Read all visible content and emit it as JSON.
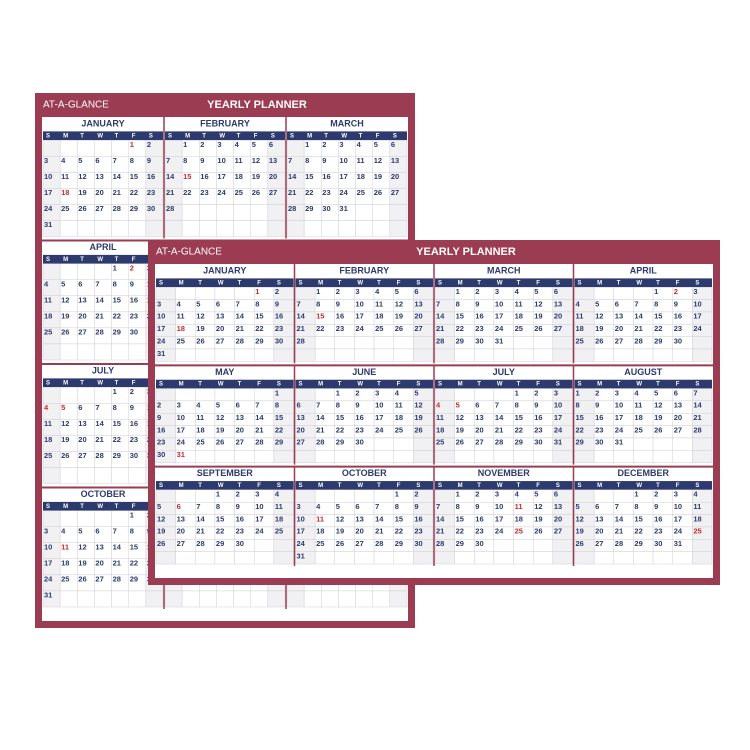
{
  "planners": [
    {
      "brand": "AT-A-GLANCE",
      "title": "YEARLY PLANNER"
    },
    {
      "brand": "AT-A-GLANCE",
      "title": "YEARLY PLANNER"
    }
  ],
  "frame_color": "#9b3c52",
  "navy": "#2c3a6e",
  "holiday_color": "#c62a33",
  "weekdays": [
    "S",
    "M",
    "T",
    "W",
    "T",
    "F",
    "S"
  ],
  "months": [
    {
      "name": "JANUARY",
      "holidays": [
        1,
        18
      ],
      "weeks": [
        [
          null,
          null,
          null,
          null,
          null,
          1,
          2
        ],
        [
          3,
          4,
          5,
          6,
          7,
          8,
          9
        ],
        [
          10,
          11,
          12,
          13,
          14,
          15,
          16
        ],
        [
          17,
          18,
          19,
          20,
          21,
          22,
          23
        ],
        [
          24,
          25,
          26,
          27,
          28,
          29,
          30
        ],
        [
          31
        ]
      ]
    },
    {
      "name": "FEBRUARY",
      "holidays": [
        15
      ],
      "weeks": [
        [
          null,
          1,
          2,
          3,
          4,
          5,
          6
        ],
        [
          7,
          8,
          9,
          10,
          11,
          12,
          13
        ],
        [
          14,
          15,
          16,
          17,
          18,
          19,
          20
        ],
        [
          21,
          22,
          23,
          24,
          25,
          26,
          27
        ],
        [
          28
        ]
      ]
    },
    {
      "name": "MARCH",
      "holidays": [],
      "weeks": [
        [
          null,
          1,
          2,
          3,
          4,
          5,
          6
        ],
        [
          7,
          8,
          9,
          10,
          11,
          12,
          13
        ],
        [
          14,
          15,
          16,
          17,
          18,
          19,
          20
        ],
        [
          21,
          22,
          23,
          24,
          25,
          26,
          27
        ],
        [
          28,
          29,
          30,
          31
        ]
      ]
    },
    {
      "name": "APRIL",
      "holidays": [
        2
      ],
      "weeks": [
        [
          null,
          null,
          null,
          null,
          1,
          2,
          3
        ],
        [
          4,
          5,
          6,
          7,
          8,
          9,
          10
        ],
        [
          11,
          12,
          13,
          14,
          15,
          16,
          17
        ],
        [
          18,
          19,
          20,
          21,
          22,
          23,
          24
        ],
        [
          25,
          26,
          27,
          28,
          29,
          30
        ]
      ]
    },
    {
      "name": "MAY",
      "holidays": [
        31
      ],
      "weeks": [
        [
          null,
          null,
          null,
          null,
          null,
          null,
          1
        ],
        [
          2,
          3,
          4,
          5,
          6,
          7,
          8
        ],
        [
          9,
          10,
          11,
          12,
          13,
          14,
          15
        ],
        [
          16,
          17,
          18,
          19,
          20,
          21,
          22
        ],
        [
          23,
          24,
          25,
          26,
          27,
          28,
          29
        ],
        [
          30,
          31
        ]
      ]
    },
    {
      "name": "JUNE",
      "holidays": [],
      "weeks": [
        [
          null,
          null,
          1,
          2,
          3,
          4,
          5
        ],
        [
          6,
          7,
          8,
          9,
          10,
          11,
          12
        ],
        [
          13,
          14,
          15,
          16,
          17,
          18,
          19
        ],
        [
          20,
          21,
          22,
          23,
          24,
          25,
          26
        ],
        [
          27,
          28,
          29,
          30
        ]
      ]
    },
    {
      "name": "JULY",
      "holidays": [
        4,
        5
      ],
      "weeks": [
        [
          null,
          null,
          null,
          null,
          1,
          2,
          3
        ],
        [
          4,
          5,
          6,
          7,
          8,
          9,
          10
        ],
        [
          11,
          12,
          13,
          14,
          15,
          16,
          17
        ],
        [
          18,
          19,
          20,
          21,
          22,
          23,
          24
        ],
        [
          25,
          26,
          27,
          28,
          29,
          30,
          31
        ]
      ]
    },
    {
      "name": "AUGUST",
      "holidays": [],
      "weeks": [
        [
          1,
          2,
          3,
          4,
          5,
          6,
          7
        ],
        [
          8,
          9,
          10,
          11,
          12,
          13,
          14
        ],
        [
          15,
          16,
          17,
          18,
          19,
          20,
          21
        ],
        [
          22,
          23,
          24,
          25,
          26,
          27,
          28
        ],
        [
          29,
          30,
          31
        ]
      ]
    },
    {
      "name": "SEPTEMBER",
      "holidays": [
        6
      ],
      "weeks": [
        [
          null,
          null,
          null,
          1,
          2,
          3,
          4
        ],
        [
          5,
          6,
          7,
          8,
          9,
          10,
          11
        ],
        [
          12,
          13,
          14,
          15,
          16,
          17,
          18
        ],
        [
          19,
          20,
          21,
          22,
          23,
          24,
          25
        ],
        [
          26,
          27,
          28,
          29,
          30
        ]
      ]
    },
    {
      "name": "OCTOBER",
      "holidays": [
        11
      ],
      "weeks": [
        [
          null,
          null,
          null,
          null,
          null,
          1,
          2
        ],
        [
          3,
          4,
          5,
          6,
          7,
          8,
          9
        ],
        [
          10,
          11,
          12,
          13,
          14,
          15,
          16
        ],
        [
          17,
          18,
          19,
          20,
          21,
          22,
          23
        ],
        [
          24,
          25,
          26,
          27,
          28,
          29,
          30
        ],
        [
          31
        ]
      ]
    },
    {
      "name": "NOVEMBER",
      "holidays": [
        11,
        25
      ],
      "weeks": [
        [
          null,
          1,
          2,
          3,
          4,
          5,
          6
        ],
        [
          7,
          8,
          9,
          10,
          11,
          12,
          13
        ],
        [
          14,
          15,
          16,
          17,
          18,
          19,
          20
        ],
        [
          21,
          22,
          23,
          24,
          25,
          26,
          27
        ],
        [
          28,
          29,
          30
        ]
      ]
    },
    {
      "name": "DECEMBER",
      "holidays": [
        25
      ],
      "weeks": [
        [
          null,
          null,
          null,
          1,
          2,
          3,
          4
        ],
        [
          5,
          6,
          7,
          8,
          9,
          10,
          11
        ],
        [
          12,
          13,
          14,
          15,
          16,
          17,
          18
        ],
        [
          19,
          20,
          21,
          22,
          23,
          24,
          25
        ],
        [
          26,
          27,
          28,
          29,
          30,
          31
        ]
      ]
    }
  ]
}
